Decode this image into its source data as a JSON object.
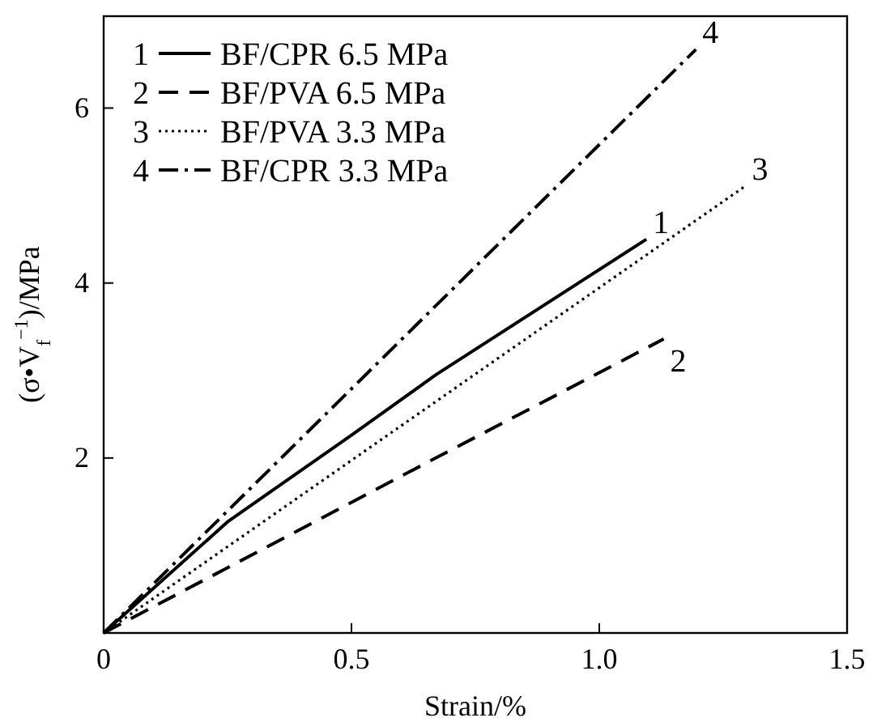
{
  "chart_data": {
    "type": "line",
    "xlabel": "Strain/%",
    "ylabel": "(σ•V$_{f}$$^{−1}$)/MPa",
    "xlim": [
      0,
      1.5
    ],
    "ylim": [
      0,
      7.05
    ],
    "xticks": [
      0,
      {
        "value": 0.5,
        "label": "0.5"
      },
      {
        "value": 1,
        "label": "1.0"
      },
      {
        "value": 1.5,
        "label": "1.5"
      }
    ],
    "yticks": [
      {
        "value": 0,
        "label": null
      },
      2,
      4,
      6
    ],
    "grid": false,
    "legend": "top left",
    "marker": "none",
    "series": [
      {
        "name": "BF/CPR 6.5 MPa",
        "color": "#000000",
        "line_style": "solid",
        "x": [
          0,
          0.25,
          0.5,
          0.67,
          1.095
        ],
        "values": [
          0,
          1.27,
          2.26,
          2.95,
          4.5
        ]
      },
      {
        "name": "BF/PVA 6.5 MPa",
        "color": "#000000",
        "line_style": "dashed",
        "x": [
          0,
          0.67,
          1.13
        ],
        "values": [
          0,
          2.0,
          3.36
        ]
      },
      {
        "name": "BF/PVA 3.3 MPa",
        "color": "#000000",
        "line_style": "dotted",
        "x": [
          0,
          1.295
        ],
        "values": [
          0,
          5.11
        ]
      },
      {
        "name": "BF/CPR 3.3 MPa",
        "color": "#000000",
        "line_style": "dashdot",
        "x": [
          0,
          1.195
        ],
        "values": [
          0,
          6.67
        ]
      }
    ],
    "annotations": [
      {
        "text": "1",
        "x": 1.095,
        "y": 4.5
      },
      {
        "text": "2",
        "x": 1.13,
        "y": 3.36
      },
      {
        "text": "3",
        "x": 1.295,
        "y": 5.11
      },
      {
        "text": "4",
        "x": 1.195,
        "y": 6.67
      }
    ]
  }
}
